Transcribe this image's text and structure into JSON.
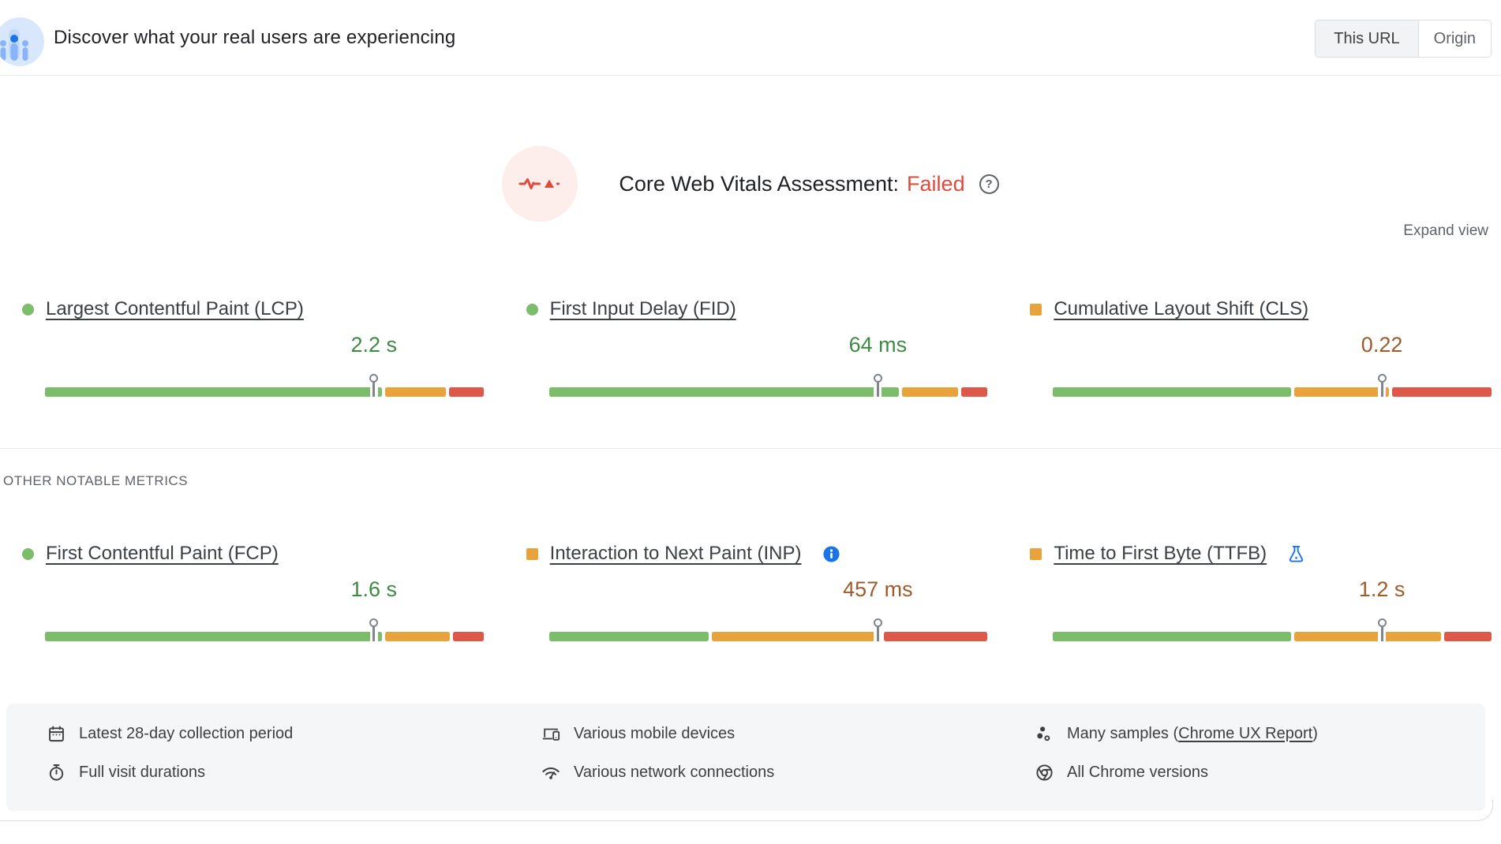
{
  "header": {
    "title": "Discover what your real users are experiencing",
    "toggle": {
      "selected": "This URL",
      "unselected": "Origin"
    }
  },
  "assessment": {
    "label": "Core Web Vitals Assessment:",
    "status": "Failed",
    "help_glyph": "?",
    "expand_label": "Expand view"
  },
  "section_label": "OTHER NOTABLE METRICS",
  "core_metrics": [
    {
      "id": "lcp",
      "label": "Largest Contentful Paint (LCP)",
      "value": "2.2 s",
      "rating": "good",
      "value_color": "good",
      "distribution": {
        "good": 78,
        "ni": 14,
        "poor": 8
      },
      "marker_pct": 75,
      "badge": null
    },
    {
      "id": "fid",
      "label": "First Input Delay (FID)",
      "value": "64 ms",
      "rating": "good",
      "value_color": "good",
      "distribution": {
        "good": 81,
        "ni": 13,
        "poor": 6
      },
      "marker_pct": 75,
      "badge": null
    },
    {
      "id": "cls",
      "label": "Cumulative Layout Shift (CLS)",
      "value": "0.22",
      "rating": "ni",
      "value_color": "warn",
      "distribution": {
        "good": 55,
        "ni": 22,
        "poor": 23
      },
      "marker_pct": 75,
      "badge": null
    }
  ],
  "other_metrics": [
    {
      "id": "fcp",
      "label": "First Contentful Paint (FCP)",
      "value": "1.6 s",
      "rating": "good",
      "value_color": "good",
      "distribution": {
        "good": 78,
        "ni": 15,
        "poor": 7
      },
      "marker_pct": 75,
      "badge": null
    },
    {
      "id": "inp",
      "label": "Interaction to Next Paint (INP)",
      "value": "457 ms",
      "rating": "ni",
      "value_color": "warn",
      "distribution": {
        "good": 37,
        "ni": 39,
        "poor": 24
      },
      "marker_pct": 75,
      "badge": "info-icon"
    },
    {
      "id": "ttfb",
      "label": "Time to First Byte (TTFB)",
      "value": "1.2 s",
      "rating": "ni",
      "value_color": "warn",
      "distribution": {
        "good": 55,
        "ni": 34,
        "poor": 11
      },
      "marker_pct": 75,
      "badge": "flask-icon"
    }
  ],
  "footer": {
    "collection_period": "Latest 28-day collection period",
    "visit_durations": "Full visit durations",
    "devices": "Various mobile devices",
    "network": "Various network connections",
    "samples_prefix": "Many samples (",
    "samples_link": "Chrome UX Report",
    "samples_suffix": ")",
    "chrome_versions": "All Chrome versions"
  },
  "colors": {
    "bar_good": "#7cbd6c",
    "bar_ni": "#e8a33d",
    "bar_poor": "#de584a",
    "value_good": "#3f8a43",
    "value_warn": "#a05b2c",
    "failed_red": "#df4b3a",
    "accent_blue": "#1a73e8",
    "footer_bg": "#f5f6f8",
    "border": "#dadce0"
  }
}
